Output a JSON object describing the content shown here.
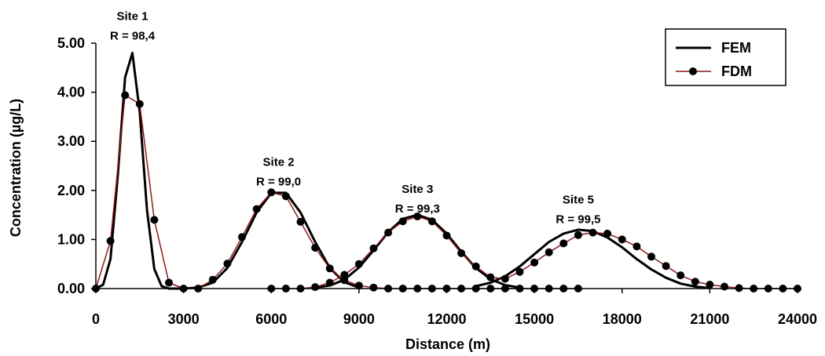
{
  "chart_data": {
    "type": "line",
    "xlabel": "Distance (m)",
    "ylabel": "Concentration (µg/L)",
    "xlim": [
      0,
      24000
    ],
    "ylim": [
      0,
      5
    ],
    "x_ticks": [
      "0",
      "3000",
      "6000",
      "9000",
      "12000",
      "15000",
      "18000",
      "21000",
      "24000"
    ],
    "y_ticks": [
      "0.00",
      "1.00",
      "2.00",
      "3.00",
      "4.00",
      "5.00"
    ],
    "grid": false,
    "legend_position": "top-right",
    "colors": {
      "fem": "#000000",
      "fdm_line": "#8b1a1a",
      "fdm_marker": "#000000"
    },
    "series": [
      {
        "name": "FEM",
        "style": "line",
        "curves": [
          {
            "x": [
              0,
              250,
              500,
              750,
              1000,
              1250,
              1500,
              1750,
              2000,
              2250,
              2500,
              3000
            ],
            "y": [
              0.0,
              0.08,
              0.6,
              2.3,
              4.3,
              4.8,
              3.6,
              1.6,
              0.4,
              0.05,
              0.0,
              0.0
            ]
          },
          {
            "x": [
              3000,
              3500,
              4000,
              4500,
              5000,
              5500,
              6000,
              6500,
              7000,
              7500,
              8000,
              8500,
              9000
            ],
            "y": [
              0.0,
              0.02,
              0.12,
              0.42,
              0.95,
              1.55,
              1.95,
              1.95,
              1.55,
              0.95,
              0.42,
              0.13,
              0.02
            ]
          },
          {
            "x": [
              7500,
              8000,
              8500,
              9000,
              9500,
              10000,
              10500,
              11000,
              11500,
              12000,
              12500,
              13000,
              13500,
              14000,
              14500
            ],
            "y": [
              0.02,
              0.06,
              0.18,
              0.43,
              0.78,
              1.15,
              1.42,
              1.5,
              1.4,
              1.12,
              0.75,
              0.42,
              0.19,
              0.07,
              0.02
            ]
          },
          {
            "x": [
              13000,
              13500,
              14000,
              14500,
              15000,
              15500,
              16000,
              16500,
              17000,
              17500,
              18000,
              18500,
              19000,
              19500,
              20000,
              20500,
              21000
            ],
            "y": [
              0.05,
              0.12,
              0.25,
              0.45,
              0.7,
              0.95,
              1.12,
              1.2,
              1.17,
              1.04,
              0.84,
              0.6,
              0.39,
              0.22,
              0.1,
              0.04,
              0.01
            ]
          }
        ]
      },
      {
        "name": "FDM",
        "style": "line+marker",
        "curves": [
          {
            "x": [
              0,
              500,
              1000,
              1500,
              2000,
              2500,
              3000,
              3500,
              4000,
              4500,
              5000,
              5500,
              6000,
              6500,
              7000,
              7500,
              8000,
              8500,
              9000,
              9500,
              10000,
              10500,
              11000,
              11500,
              12000,
              12500,
              13000,
              13500,
              14000,
              14500,
              15000,
              15500,
              16000,
              16500
            ],
            "y": [
              0.0,
              0.97,
              3.94,
              3.76,
              1.4,
              0.12,
              0.0,
              0.0,
              0.18,
              0.51,
              1.05,
              1.62,
              1.96,
              1.88,
              1.36,
              0.83,
              0.41,
              0.17,
              0.06,
              0.02,
              0.0,
              0.0,
              0.0,
              0.0,
              0.0,
              0.0,
              0.0,
              0.0,
              0.0,
              0.0,
              0.0,
              0.0,
              0.0,
              0.0
            ]
          },
          {
            "x": [
              6000,
              6500,
              7000,
              7500,
              8000,
              8500,
              9000,
              9500,
              10000,
              10500,
              11000,
              11500,
              12000,
              12500,
              13000,
              13500,
              14000,
              14500,
              15000,
              15500,
              16000,
              16500,
              17000,
              17500,
              18000,
              18500,
              19000,
              19500,
              20000,
              20500,
              21000,
              21500,
              22000,
              22500,
              23000,
              23500,
              24000
            ],
            "y": [
              0.0,
              0.0,
              0.0,
              0.03,
              0.12,
              0.28,
              0.5,
              0.82,
              1.14,
              1.37,
              1.47,
              1.37,
              1.08,
              0.72,
              0.45,
              0.23,
              0.2,
              0.34,
              0.53,
              0.74,
              0.92,
              1.09,
              1.14,
              1.12,
              1.0,
              0.86,
              0.65,
              0.46,
              0.27,
              0.14,
              0.08,
              0.04,
              0.01,
              0.0,
              0.0,
              0.0,
              0.0
            ]
          }
        ]
      }
    ],
    "annotations": [
      {
        "line1": "Site 1",
        "line2": "R = 98,4",
        "x": 1250,
        "y": 5.47
      },
      {
        "line1": "Site 2",
        "line2": "R = 99,0",
        "x": 6250,
        "y": 2.5
      },
      {
        "line1": "Site 3",
        "line2": "R = 99,3",
        "x": 11000,
        "y": 1.95
      },
      {
        "line1": "Site 5",
        "line2": "R = 99,5",
        "x": 16500,
        "y": 1.73
      }
    ]
  }
}
